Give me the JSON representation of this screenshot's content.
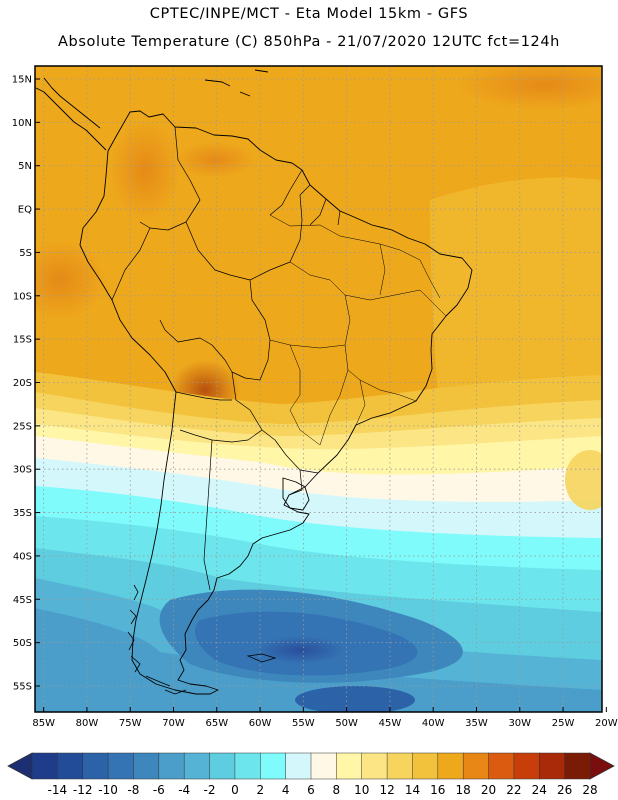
{
  "header": {
    "line1": "CPTEC/INPE/MCT -  Eta Model 15km - GFS",
    "line2": "Absolute Temperature (C) 850hPa - 21/07/2020 12UTC fct=124h"
  },
  "map": {
    "lat_labels": [
      "15N",
      "10N",
      "5N",
      "EQ",
      "5S",
      "10S",
      "15S",
      "20S",
      "25S",
      "30S",
      "35S",
      "40S",
      "45S",
      "50S",
      "55S"
    ],
    "lat_values": [
      15,
      10,
      5,
      0,
      -5,
      -10,
      -15,
      -20,
      -25,
      -30,
      -35,
      -40,
      -45,
      -50,
      -55
    ],
    "lon_labels": [
      "85W",
      "80W",
      "75W",
      "70W",
      "65W",
      "60W",
      "55W",
      "50W",
      "45W",
      "40W",
      "35W",
      "30W",
      "25W",
      "20W"
    ],
    "lon_values": [
      -85,
      -80,
      -75,
      -70,
      -65,
      -60,
      -55,
      -50,
      -45,
      -40,
      -35,
      -30,
      -25,
      -20
    ],
    "lat_range": [
      -58,
      16.5
    ],
    "lon_range": [
      -86,
      -20.5
    ]
  },
  "colorbar": {
    "levels": [
      "-14",
      "-12",
      "-10",
      "-8",
      "-6",
      "-4",
      "-2",
      "0",
      "2",
      "4",
      "6",
      "8",
      "10",
      "12",
      "14",
      "16",
      "18",
      "20",
      "22",
      "24",
      "26",
      "28"
    ],
    "colors": [
      "#1f3c8a",
      "#234c98",
      "#2c62a8",
      "#3474b4",
      "#3d87bd",
      "#4a9ec9",
      "#55b4d6",
      "#5fcde0",
      "#6ce6ec",
      "#7ffbfb",
      "#d4f7fb",
      "#fff8e6",
      "#fff6a8",
      "#fbe585",
      "#f6d45e",
      "#f2c23c",
      "#eea81c",
      "#e88616",
      "#db5c10",
      "#c83e0b",
      "#a92a08",
      "#7a1b06"
    ],
    "under_color": "#1c2f73",
    "over_color": "#7a0e0e"
  }
}
